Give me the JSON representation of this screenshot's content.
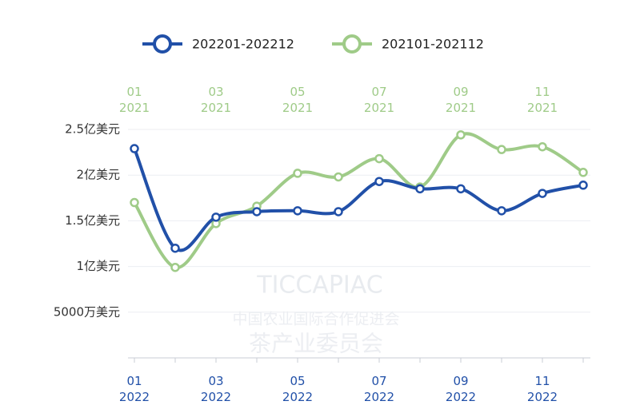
{
  "chart_data": {
    "type": "line",
    "legend_position": "top",
    "categories": [
      [
        "01",
        "2022"
      ],
      null,
      [
        "03",
        "2022"
      ],
      null,
      [
        "05",
        "2022"
      ],
      null,
      [
        "07",
        "2022"
      ],
      null,
      [
        "09",
        "2022"
      ],
      null,
      [
        "11",
        "2022"
      ],
      null
    ],
    "top_categories": [
      [
        "01",
        "2021"
      ],
      null,
      [
        "03",
        "2021"
      ],
      null,
      [
        "05",
        "2021"
      ],
      null,
      [
        "07",
        "2021"
      ],
      null,
      [
        "09",
        "2021"
      ],
      null,
      [
        "11",
        "2021"
      ],
      null
    ],
    "series": [
      {
        "name": "202201-202212",
        "color": "#2150a8",
        "axis": "x_bottom",
        "values": [
          2.29,
          1.2,
          1.54,
          1.6,
          1.61,
          1.6,
          1.93,
          1.85,
          1.85,
          1.61,
          1.8,
          1.89
        ]
      },
      {
        "name": "202101-202112",
        "color": "#9fcb88",
        "axis": "x_top",
        "values": [
          1.7,
          0.99,
          1.47,
          1.66,
          2.02,
          1.98,
          2.18,
          1.87,
          2.44,
          2.28,
          2.31,
          2.03
        ]
      }
    ],
    "ylim": [
      0,
      2.5
    ],
    "yticks": [
      {
        "value": 0,
        "label": null
      },
      {
        "value": 0.5,
        "label": "5000万美元"
      },
      {
        "value": 1,
        "label": "1亿美元"
      },
      {
        "value": 1.5,
        "label": "1.5亿美元"
      },
      {
        "value": 2,
        "label": "2亿美元"
      },
      {
        "value": 2.5,
        "label": "2.5亿美元"
      }
    ],
    "grid": true,
    "watermark": [
      "TICCAPIAC",
      "中国农业国际合作促进会",
      "茶产业委员会"
    ]
  }
}
